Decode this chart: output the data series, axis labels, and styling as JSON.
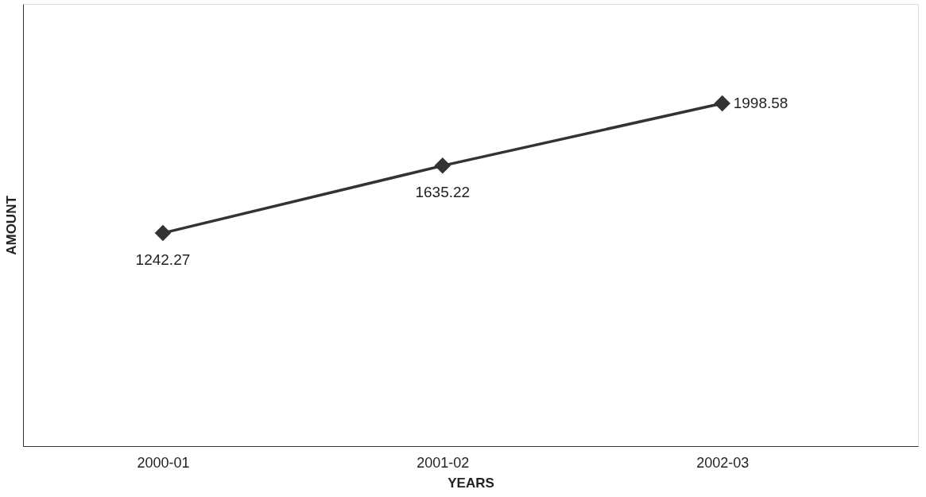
{
  "chart_data": {
    "type": "line",
    "xlabel": "YEARS",
    "ylabel": "AMOUNT",
    "categories": [
      "2000-01",
      "2001-02",
      "2002-03"
    ],
    "series": [
      {
        "color": "#333333",
        "values": [
          1242.27,
          1635.22,
          1998.58
        ]
      }
    ],
    "data_labels": true,
    "marker": "diamond",
    "line_style": "solid",
    "grid": false
  }
}
